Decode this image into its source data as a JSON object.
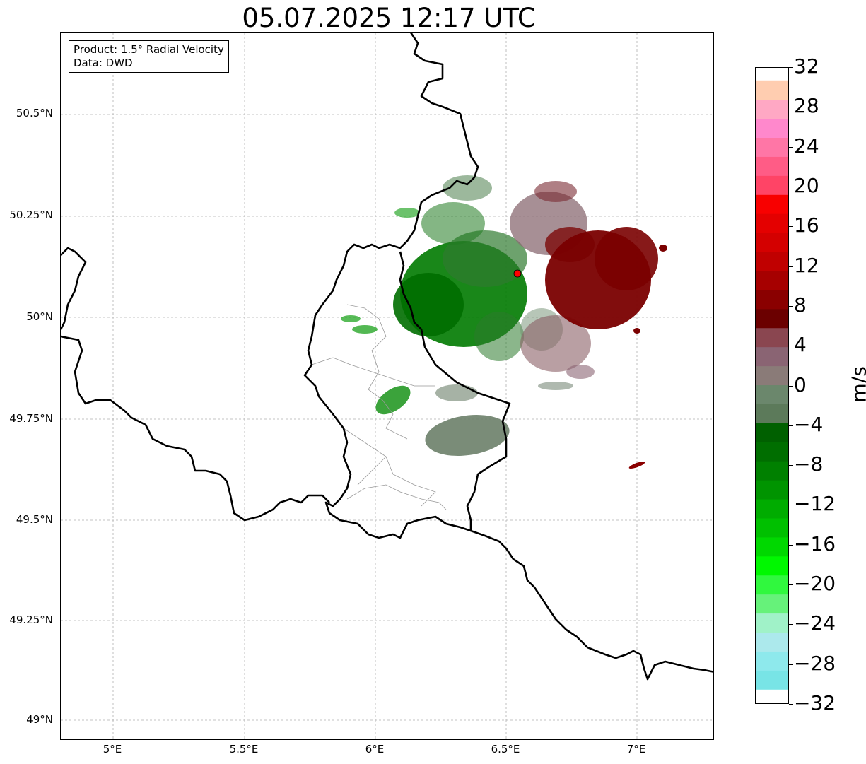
{
  "title": "05.07.2025 12:17 UTC",
  "info_box": {
    "product": "Product: 1.5° Radial Velocity",
    "source": "Data: DWD"
  },
  "map": {
    "lon_range": [
      4.8,
      7.3
    ],
    "lat_range": [
      48.95,
      50.7
    ],
    "lat_ticks": [
      "50.5°N",
      "50.25°N",
      "50°N",
      "49.75°N",
      "49.5°N",
      "49.25°N",
      "49°N"
    ],
    "lon_ticks": [
      "5°E",
      "5.5°E",
      "6°E",
      "6.5°E",
      "7°E"
    ],
    "gridlines": true,
    "radar_site_color": "#ff0000",
    "border_color": "#000000",
    "colors": {
      "inbound": "#007000",
      "outbound": "#7a0000",
      "near_zero_gray_green": "#6b7f69",
      "near_zero_gray_red": "#8a5f66"
    }
  },
  "colorbar": {
    "label": "m/s",
    "tick_labels": [
      "32",
      "28",
      "24",
      "20",
      "16",
      "12",
      "8",
      "4",
      "0",
      "−4",
      "−8",
      "−12",
      "−16",
      "−20",
      "−24",
      "−28",
      "−32"
    ],
    "range": [
      -32,
      32
    ],
    "colors_bottom_to_top": [
      "#78e4e6",
      "#8ee9ec",
      "#ace9ec",
      "#a0f2c8",
      "#66f27a",
      "#30f83e",
      "#00f800",
      "#00d800",
      "#00c000",
      "#00ac00",
      "#009400",
      "#008000",
      "#006e00",
      "#006000",
      "#5c7a5a",
      "#6b876c",
      "#8a7b78",
      "#8a6473",
      "#8a4650",
      "#6b0000",
      "#8a0000",
      "#a60000",
      "#c00000",
      "#d40000",
      "#e40000",
      "#f80000",
      "#ff4466",
      "#ff5c86",
      "#ff76a6",
      "#ff88cc",
      "#ffa8c4",
      "#ffcdb0"
    ]
  }
}
